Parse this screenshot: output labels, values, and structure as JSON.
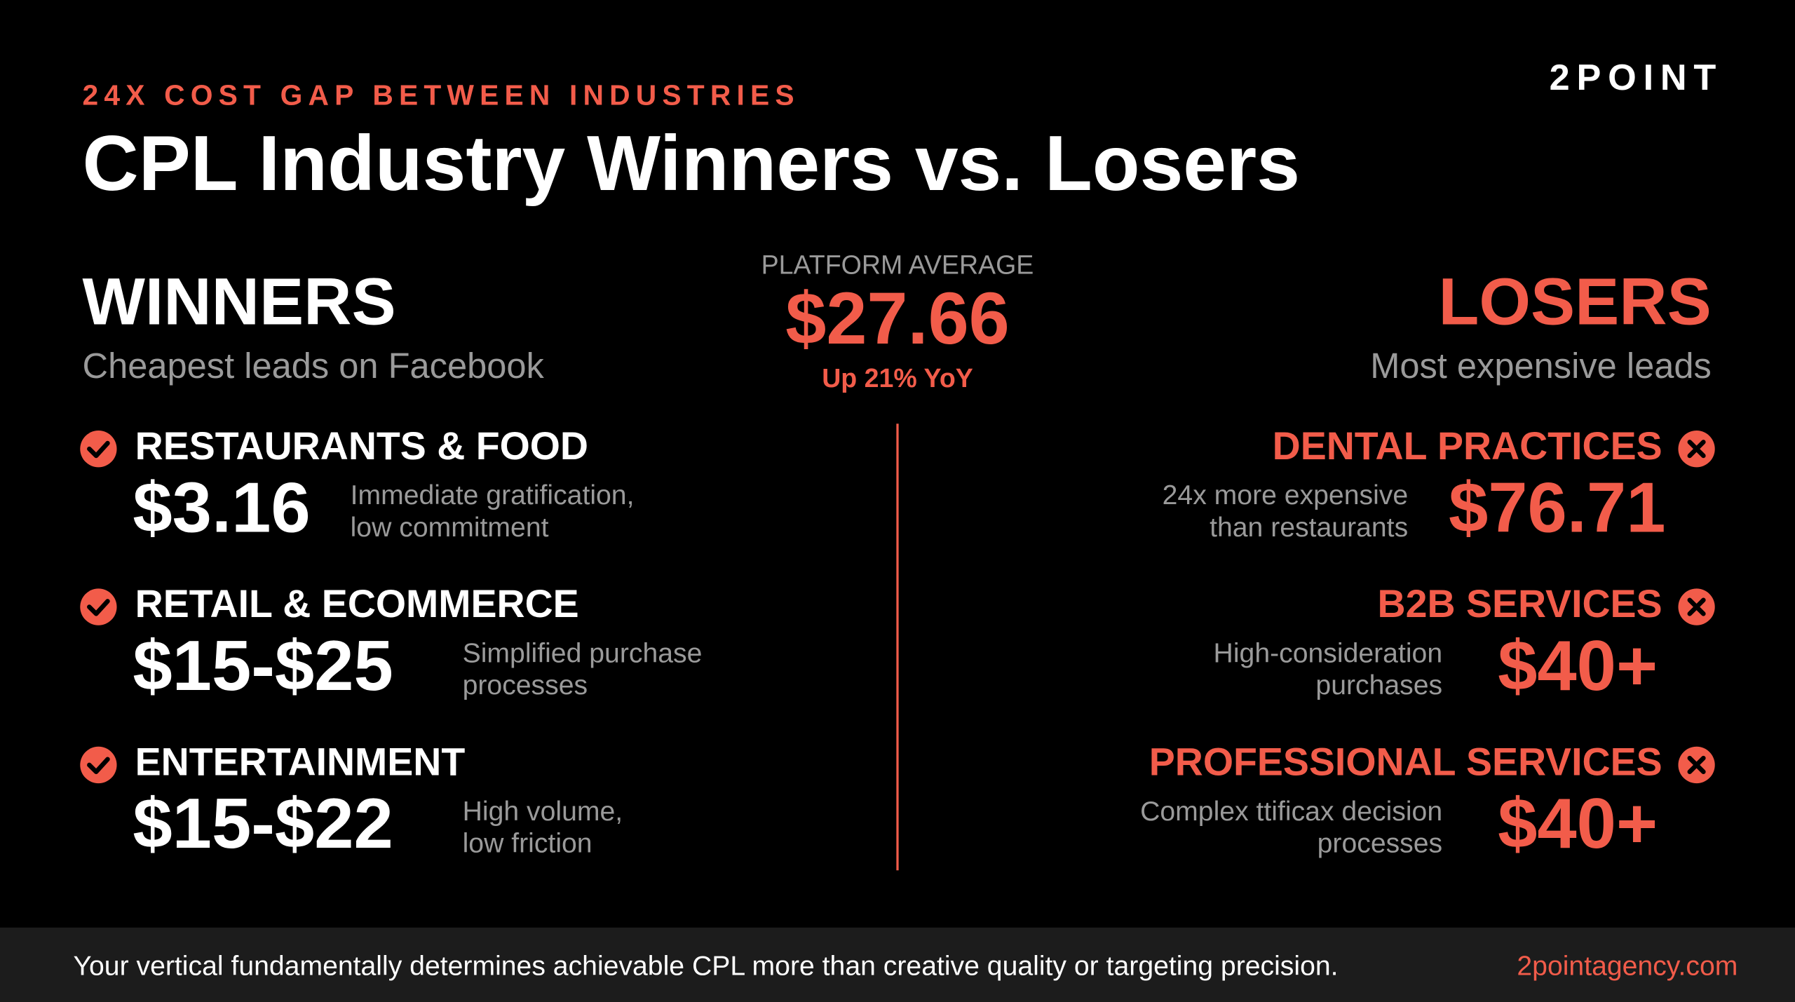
{
  "header": {
    "eyebrow": "24X COST GAP BETWEEN INDUSTRIES",
    "title": "CPL Industry Winners vs. Losers",
    "logo": "2POINT"
  },
  "winners": {
    "heading": "WINNERS",
    "subheading": "Cheapest leads on Facebook",
    "items": [
      {
        "name": "RESTAURANTS & FOOD",
        "price": "$3.16",
        "description": [
          "Immediate gratification,",
          "low commitment"
        ]
      },
      {
        "name": "RETAIL & ECOMMERCE",
        "price": "$15-$25",
        "description": [
          "Simplified purchase",
          "processes"
        ]
      },
      {
        "name": "ENTERTAINMENT",
        "price": "$15-$22",
        "description": [
          "High volume,",
          "low friction"
        ]
      }
    ]
  },
  "average": {
    "label": "PLATFORM AVERAGE",
    "value": "$27.66",
    "change": "Up 21% YoY"
  },
  "losers": {
    "heading": "LOSERS",
    "subheading": "Most expensive leads",
    "items": [
      {
        "name": "DENTAL PRACTICES",
        "price": "$76.71",
        "description": [
          "24x more expensive",
          "than restaurants"
        ]
      },
      {
        "name": "B2B SERVICES",
        "price": "$40+",
        "description": [
          "High-consideration",
          "purchases"
        ]
      },
      {
        "name": "PROFESSIONAL SERVICES",
        "price": "$40+",
        "description": [
          "Complex ttificax decision",
          "processes"
        ]
      }
    ]
  },
  "footer": {
    "text": "Your vertical fundamentally determines achievable CPL more than creative quality or targeting precision.",
    "url": "2pointagency.com"
  }
}
